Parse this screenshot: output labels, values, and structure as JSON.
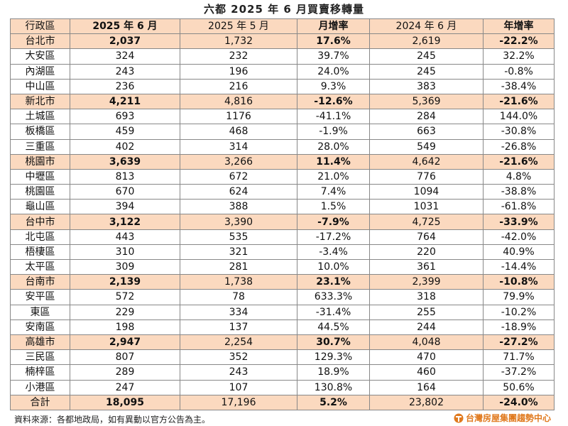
{
  "title": "六都 2025 年 6 月買賣移轉量",
  "table": {
    "header": [
      "行政區",
      "2025 年 6 月",
      "2025 年 5 月",
      "月增率",
      "2024 年 6 月",
      "年增率"
    ],
    "rows": [
      [
        "台北市",
        "2,037",
        "1,732",
        "17.6%",
        "2,619",
        "-22.2%"
      ],
      [
        "大安區",
        "324",
        "232",
        "39.7%",
        "245",
        "32.2%"
      ],
      [
        "內湖區",
        "243",
        "196",
        "24.0%",
        "245",
        "-0.8%"
      ],
      [
        "中山區",
        "236",
        "216",
        "9.3%",
        "383",
        "-38.4%"
      ],
      [
        "新北市",
        "4,211",
        "4,816",
        "-12.6%",
        "5,369",
        "-21.6%"
      ],
      [
        "土城區",
        "693",
        "1176",
        "-41.1%",
        "284",
        "144.0%"
      ],
      [
        "板橋區",
        "459",
        "468",
        "-1.9%",
        "663",
        "-30.8%"
      ],
      [
        "三重區",
        "402",
        "314",
        "28.0%",
        "549",
        "-26.8%"
      ],
      [
        "桃園市",
        "3,639",
        "3,266",
        "11.4%",
        "4,642",
        "-21.6%"
      ],
      [
        "中壢區",
        "813",
        "672",
        "21.0%",
        "776",
        "4.8%"
      ],
      [
        "桃園區",
        "670",
        "624",
        "7.4%",
        "1094",
        "-38.8%"
      ],
      [
        "龜山區",
        "394",
        "388",
        "1.5%",
        "1031",
        "-61.8%"
      ],
      [
        "台中市",
        "3,122",
        "3,390",
        "-7.9%",
        "4,725",
        "-33.9%"
      ],
      [
        "北屯區",
        "443",
        "535",
        "-17.2%",
        "764",
        "-42.0%"
      ],
      [
        "梧棲區",
        "310",
        "321",
        "-3.4%",
        "220",
        "40.9%"
      ],
      [
        "太平區",
        "309",
        "281",
        "10.0%",
        "361",
        "-14.4%"
      ],
      [
        "台南市",
        "2,139",
        "1,738",
        "23.1%",
        "2,399",
        "-10.8%"
      ],
      [
        "安平區",
        "572",
        "78",
        "633.3%",
        "318",
        "79.9%"
      ],
      [
        "東區",
        "229",
        "334",
        "-31.4%",
        "255",
        "-10.2%"
      ],
      [
        "安南區",
        "198",
        "137",
        "44.5%",
        "244",
        "-18.9%"
      ],
      [
        "高雄市",
        "2,947",
        "2,254",
        "30.7%",
        "4,048",
        "-27.2%"
      ],
      [
        "三民區",
        "807",
        "352",
        "129.3%",
        "470",
        "71.7%"
      ],
      [
        "楠梓區",
        "289",
        "243",
        "18.9%",
        "460",
        "-37.2%"
      ],
      [
        "小港區",
        "247",
        "107",
        "130.8%",
        "164",
        "50.6%"
      ],
      [
        "合計",
        "18,095",
        "17,196",
        "5.2%",
        "23,802",
        "-24.0%"
      ]
    ]
  },
  "footer": {
    "source": "資料來源：各都地政局，如有異動以官方公告為主。",
    "logo": "台灣房屋集團趨勢中心"
  }
}
